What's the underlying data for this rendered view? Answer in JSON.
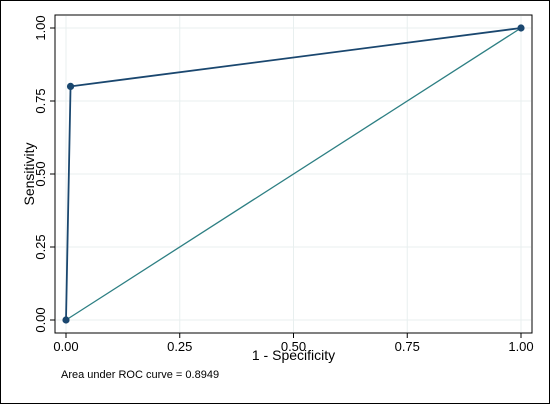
{
  "chart_data": {
    "type": "line",
    "xlabel": "1 - Specificity",
    "ylabel": "Sensitivity",
    "xlim": [
      0,
      1
    ],
    "ylim": [
      0,
      1
    ],
    "x_ticks": [
      "0.00",
      "0.25",
      "0.50",
      "0.75",
      "1.00"
    ],
    "y_ticks": [
      "0.00",
      "0.25",
      "0.50",
      "0.75",
      "1.00"
    ],
    "grid": true,
    "series": [
      {
        "x": [
          0,
          0.01,
          1
        ],
        "y": [
          0,
          0.8,
          1
        ],
        "markers": true
      },
      {
        "x": [
          0,
          1
        ],
        "y": [
          0,
          1
        ],
        "markers": false
      }
    ],
    "note": "Area under ROC curve = 0.8949",
    "colors": {
      "roc": "#1a476f",
      "reference": "#2d7f83",
      "grid": "#e8efef"
    }
  }
}
